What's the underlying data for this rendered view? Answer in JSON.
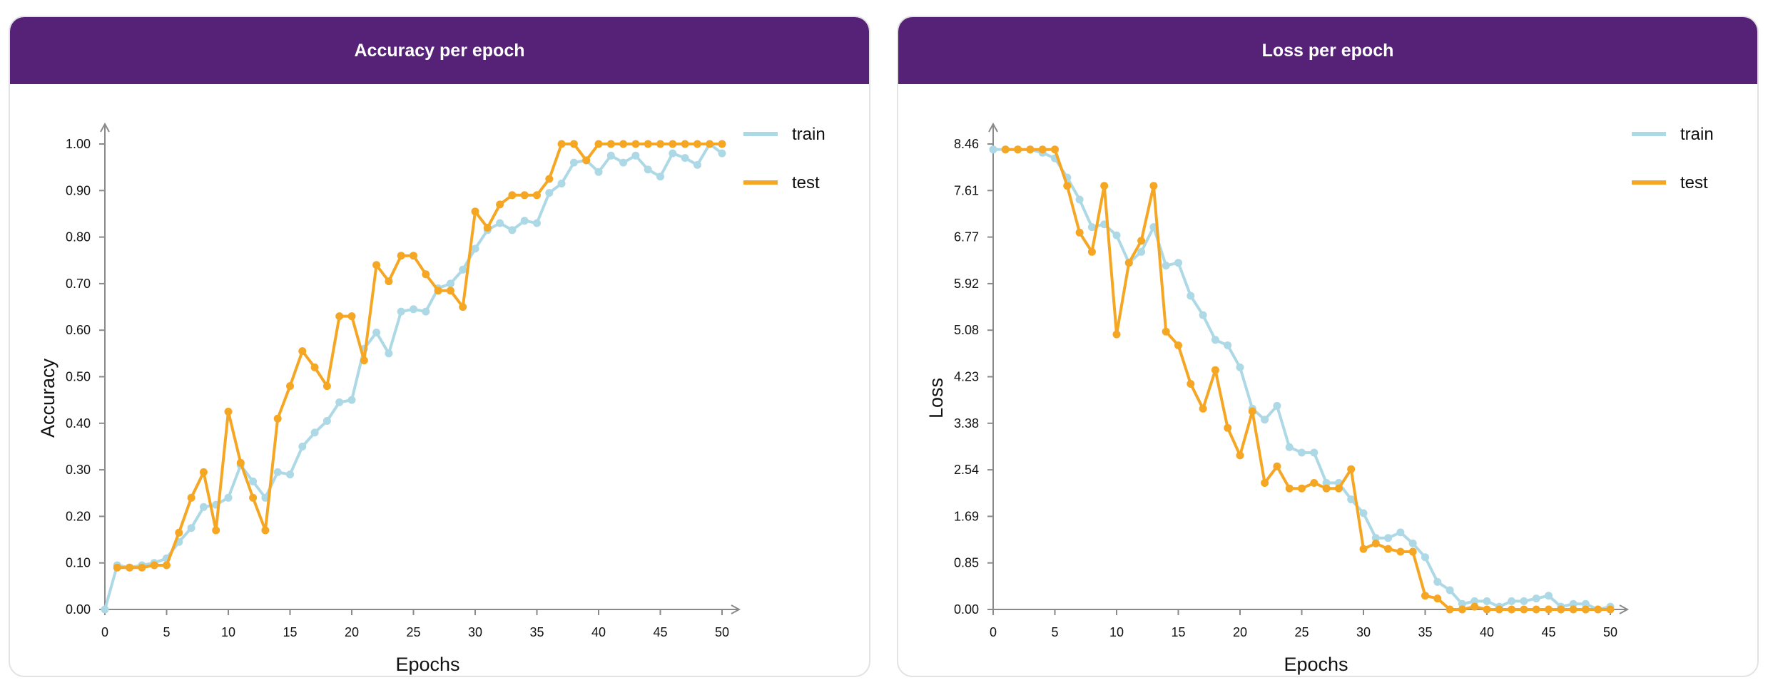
{
  "chart_data": [
    {
      "type": "line",
      "title": "Accuracy per epoch",
      "xlabel": "Epochs",
      "ylabel": "Accuracy",
      "xlim": [
        0,
        50
      ],
      "ylim": [
        0,
        1.0
      ],
      "xticks": [
        "0",
        "5",
        "10",
        "15",
        "20",
        "25",
        "30",
        "35",
        "40",
        "45",
        "50"
      ],
      "yticks": [
        "0.00",
        "0.10",
        "0.20",
        "0.30",
        "0.40",
        "0.50",
        "0.60",
        "0.70",
        "0.80",
        "0.90",
        "1.00"
      ],
      "legend_position": "top-right",
      "grid": false,
      "x": [
        0,
        1,
        2,
        3,
        4,
        5,
        6,
        7,
        8,
        9,
        10,
        11,
        12,
        13,
        14,
        15,
        16,
        17,
        18,
        19,
        20,
        21,
        22,
        23,
        24,
        25,
        26,
        27,
        28,
        29,
        30,
        31,
        32,
        33,
        34,
        35,
        36,
        37,
        38,
        39,
        40,
        41,
        42,
        43,
        44,
        45,
        46,
        47,
        48,
        49,
        50
      ],
      "series": [
        {
          "name": "train",
          "color": "#add8e6",
          "values": [
            0,
            0.095,
            0.09,
            0.095,
            0.1,
            0.11,
            0.145,
            0.175,
            0.22,
            0.225,
            0.24,
            0.31,
            0.275,
            0.24,
            0.295,
            0.29,
            0.35,
            0.38,
            0.405,
            0.445,
            0.45,
            0.56,
            0.595,
            0.55,
            0.64,
            0.645,
            0.64,
            0.69,
            0.7,
            0.73,
            0.775,
            0.815,
            0.83,
            0.815,
            0.835,
            0.83,
            0.895,
            0.915,
            0.96,
            0.965,
            0.94,
            0.975,
            0.96,
            0.975,
            0.945,
            0.93,
            0.98,
            0.97,
            0.955,
            1.0,
            0.98
          ]
        },
        {
          "name": "test",
          "color": "#f5a623",
          "values": [
            null,
            0.09,
            0.09,
            0.09,
            0.095,
            0.095,
            0.165,
            0.24,
            0.295,
            0.17,
            0.425,
            0.315,
            0.24,
            0.17,
            0.41,
            0.48,
            0.555,
            0.52,
            0.48,
            0.63,
            0.63,
            0.535,
            0.74,
            0.705,
            0.76,
            0.76,
            0.72,
            0.685,
            0.685,
            0.65,
            0.855,
            0.82,
            0.87,
            0.89,
            0.89,
            0.89,
            0.925,
            1.0,
            1.0,
            0.965,
            1.0,
            1.0,
            1.0,
            1.0,
            1.0,
            1.0,
            1.0,
            1.0,
            1.0,
            1.0,
            1.0
          ]
        }
      ]
    },
    {
      "type": "line",
      "title": "Loss per epoch",
      "xlabel": "Epochs",
      "ylabel": "Loss",
      "xlim": [
        0,
        50
      ],
      "ylim": [
        0,
        8.46
      ],
      "xticks": [
        "0",
        "5",
        "10",
        "15",
        "20",
        "25",
        "30",
        "35",
        "40",
        "45",
        "50"
      ],
      "yticks": [
        "0.00",
        "0.85",
        "1.69",
        "2.54",
        "3.38",
        "4.23",
        "5.08",
        "5.92",
        "6.77",
        "7.61",
        "8.46"
      ],
      "legend_position": "top-right",
      "grid": false,
      "x": [
        0,
        1,
        2,
        3,
        4,
        5,
        6,
        7,
        8,
        9,
        10,
        11,
        12,
        13,
        14,
        15,
        16,
        17,
        18,
        19,
        20,
        21,
        22,
        23,
        24,
        25,
        26,
        27,
        28,
        29,
        30,
        31,
        32,
        33,
        34,
        35,
        36,
        37,
        38,
        39,
        40,
        41,
        42,
        43,
        44,
        45,
        46,
        47,
        48,
        49,
        50
      ],
      "series": [
        {
          "name": "train",
          "color": "#add8e6",
          "values": [
            8.36,
            8.36,
            8.36,
            8.36,
            8.3,
            8.2,
            7.85,
            7.45,
            6.95,
            7.0,
            6.8,
            6.3,
            6.5,
            6.95,
            6.25,
            6.3,
            5.7,
            5.35,
            4.9,
            4.8,
            4.4,
            3.65,
            3.45,
            3.7,
            2.95,
            2.85,
            2.85,
            2.3,
            2.3,
            2.0,
            1.75,
            1.3,
            1.3,
            1.4,
            1.2,
            0.95,
            0.5,
            0.35,
            0.1,
            0.15,
            0.15,
            0.05,
            0.15,
            0.15,
            0.2,
            0.25,
            0.05,
            0.1,
            0.1,
            0.0,
            0.05
          ]
        },
        {
          "name": "test",
          "color": "#f5a623",
          "values": [
            null,
            8.36,
            8.36,
            8.36,
            8.36,
            8.36,
            7.7,
            6.85,
            6.5,
            7.7,
            5.0,
            6.3,
            6.7,
            7.7,
            5.05,
            4.8,
            4.1,
            3.65,
            4.35,
            3.3,
            2.8,
            3.6,
            2.3,
            2.6,
            2.2,
            2.2,
            2.3,
            2.2,
            2.2,
            2.55,
            1.1,
            1.2,
            1.1,
            1.05,
            1.05,
            0.25,
            0.2,
            0.0,
            0.0,
            0.05,
            0.0,
            0.0,
            0.0,
            0.0,
            0.0,
            0.0,
            0.0,
            0.0,
            0.0,
            0.0,
            0.0
          ]
        }
      ]
    }
  ]
}
